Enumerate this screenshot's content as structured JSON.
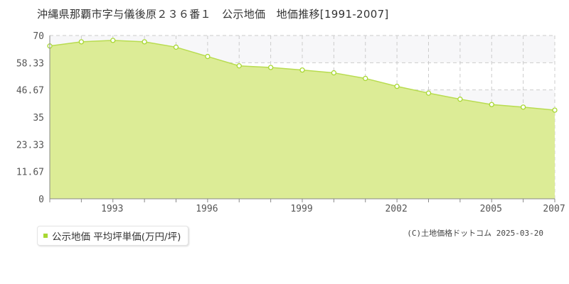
{
  "title": "沖縄県那覇市字与儀後原２３６番１　公示地価　地価推移[1991-2007]",
  "legend": {
    "label": "公示地価 平均坪単価(万円/坪)"
  },
  "credit": "(C)土地価格ドットコム 2025-03-20",
  "colors": {
    "fill": "#dcec96",
    "line": "#b8dc50",
    "marker": "#a8d832",
    "grid": "#cccccc",
    "axis": "#888888",
    "band": "#f7f7f9"
  },
  "chart_data": {
    "type": "area",
    "x": [
      1991,
      1992,
      1993,
      1994,
      1995,
      1996,
      1997,
      1998,
      1999,
      2000,
      2001,
      2002,
      2003,
      2004,
      2005,
      2006,
      2007
    ],
    "series": [
      {
        "name": "公示地価 平均坪単価(万円/坪)",
        "values": [
          65.5,
          67.3,
          67.9,
          67.3,
          65.0,
          61.0,
          57.0,
          56.3,
          55.2,
          54.0,
          51.6,
          48.2,
          45.3,
          42.7,
          40.4,
          39.3,
          38.0
        ]
      }
    ],
    "xticks": [
      "1993",
      "1996",
      "1999",
      "2002",
      "2005",
      "2007"
    ],
    "yticks": [
      "0",
      "11.67",
      "23.33",
      "35",
      "46.67",
      "58.33",
      "70"
    ],
    "xlim": [
      1991,
      2007
    ],
    "ylim": [
      0,
      70
    ],
    "grid": true
  }
}
